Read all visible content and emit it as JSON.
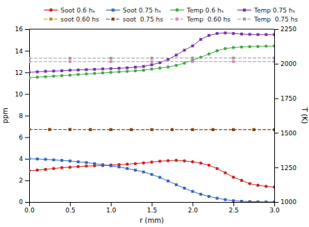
{
  "chart_data": {
    "type": "line",
    "xlabel": "r (mm)",
    "ylabel": "ppm",
    "y2label": "T (K)",
    "xlim": [
      0,
      3
    ],
    "ylim": [
      0,
      16
    ],
    "y2lim": [
      1000,
      2250
    ],
    "xticks": [
      {
        "value": 0,
        "label": "0.0"
      },
      0.5,
      {
        "value": 1,
        "label": "1.0"
      },
      1.5,
      {
        "value": 2,
        "label": "2.0"
      },
      2.5,
      {
        "value": 3,
        "label": "3.0"
      }
    ],
    "yticks": [
      0,
      2,
      4,
      6,
      8,
      10,
      12,
      14,
      16
    ],
    "y2ticks": [
      1000,
      1250,
      1500,
      1750,
      2000,
      2250
    ],
    "grid": false,
    "legend": "upper right",
    "series": [
      {
        "name": "Soot 0.6 hₛ",
        "color": "#cc2222",
        "marker": "circle",
        "line_style": "solid",
        "x": [
          0.0,
          0.1,
          0.2,
          0.3,
          0.4,
          0.5,
          0.6,
          0.7,
          0.8,
          0.9,
          1.0,
          1.1,
          1.2,
          1.3,
          1.4,
          1.5,
          1.6,
          1.7,
          1.8,
          1.9,
          2.0,
          2.1,
          2.2,
          2.3,
          2.4,
          2.5,
          2.6,
          2.7,
          2.8,
          2.9,
          3.0
        ],
        "values": [
          2.9,
          2.95,
          3.02,
          3.1,
          3.18,
          3.22,
          3.28,
          3.32,
          3.35,
          3.38,
          3.42,
          3.46,
          3.5,
          3.55,
          3.62,
          3.7,
          3.78,
          3.82,
          3.85,
          3.8,
          3.72,
          3.6,
          3.4,
          3.1,
          2.7,
          2.3,
          2.0,
          1.7,
          1.55,
          1.45,
          1.38
        ]
      },
      {
        "name": "Soot 0.75 hₛ",
        "color": "#3366bb",
        "marker": "square",
        "line_style": "solid",
        "x": [
          0.0,
          0.1,
          0.2,
          0.3,
          0.4,
          0.5,
          0.6,
          0.7,
          0.8,
          0.9,
          1.0,
          1.1,
          1.2,
          1.3,
          1.4,
          1.5,
          1.6,
          1.7,
          1.8,
          1.9,
          2.0,
          2.1,
          2.2,
          2.3,
          2.4,
          2.5,
          2.6,
          2.7,
          2.8,
          2.9,
          3.0
        ],
        "values": [
          4.0,
          3.98,
          3.95,
          3.9,
          3.85,
          3.8,
          3.72,
          3.65,
          3.55,
          3.45,
          3.35,
          3.25,
          3.1,
          2.95,
          2.78,
          2.55,
          2.28,
          1.95,
          1.6,
          1.28,
          0.98,
          0.72,
          0.52,
          0.35,
          0.22,
          0.12,
          0.07,
          0.04,
          0.02,
          0.01,
          0.0
        ]
      },
      {
        "name": "Temp 0.6 hₛ",
        "color": "#44aa44",
        "marker": "circle",
        "line_style": "solid",
        "x": [
          0.0,
          0.1,
          0.2,
          0.3,
          0.4,
          0.5,
          0.6,
          0.7,
          0.8,
          0.9,
          1.0,
          1.1,
          1.2,
          1.3,
          1.4,
          1.5,
          1.6,
          1.7,
          1.8,
          1.9,
          2.0,
          2.1,
          2.2,
          2.3,
          2.4,
          2.5,
          2.6,
          2.7,
          2.8,
          2.9,
          3.0
        ],
        "values": [
          11.5,
          11.55,
          11.6,
          11.65,
          11.7,
          11.75,
          11.8,
          11.85,
          11.9,
          11.95,
          12.0,
          12.05,
          12.1,
          12.15,
          12.2,
          12.3,
          12.4,
          12.5,
          12.65,
          12.85,
          13.1,
          13.4,
          13.7,
          14.0,
          14.2,
          14.3,
          14.35,
          14.38,
          14.4,
          14.42,
          14.44
        ]
      },
      {
        "name": "Temp 0.75 hₛ",
        "color": "#7733aa",
        "marker": "square",
        "line_style": "solid",
        "x": [
          0.0,
          0.1,
          0.2,
          0.3,
          0.4,
          0.5,
          0.6,
          0.7,
          0.8,
          0.9,
          1.0,
          1.1,
          1.2,
          1.3,
          1.4,
          1.5,
          1.6,
          1.7,
          1.8,
          1.9,
          2.0,
          2.1,
          2.2,
          2.3,
          2.4,
          2.5,
          2.6,
          2.7,
          2.8,
          2.9,
          3.0
        ],
        "values": [
          12.0,
          12.05,
          12.1,
          12.12,
          12.15,
          12.2,
          12.22,
          12.25,
          12.28,
          12.32,
          12.35,
          12.38,
          12.42,
          12.48,
          12.55,
          12.7,
          12.9,
          13.2,
          13.6,
          14.05,
          14.45,
          15.05,
          15.42,
          15.6,
          15.65,
          15.6,
          15.55,
          15.52,
          15.5,
          15.5,
          15.5
        ]
      },
      {
        "name": "soot 0.60 hs",
        "color": "#cc8800",
        "marker": "square",
        "line_style": "dashed",
        "x": [
          0.0,
          0.25,
          0.5,
          0.75,
          1.0,
          1.25,
          1.5,
          1.75,
          2.0,
          2.25,
          2.5,
          2.75,
          3.0
        ],
        "values": [
          6.72,
          6.71,
          6.71,
          6.7,
          6.7,
          6.7,
          6.7,
          6.7,
          6.7,
          6.7,
          6.7,
          6.7,
          6.7
        ]
      },
      {
        "name": "soot  0.75 hs",
        "color": "#774422",
        "marker": "square",
        "line_style": "dashed",
        "x": [
          0.0,
          0.25,
          0.5,
          0.75,
          1.0,
          1.25,
          1.5,
          1.75,
          2.0,
          2.25,
          2.5,
          2.75,
          3.0
        ],
        "values": [
          6.72,
          6.71,
          6.71,
          6.7,
          6.7,
          6.7,
          6.7,
          6.7,
          6.7,
          6.7,
          6.7,
          6.7,
          6.7
        ]
      },
      {
        "name": "Temp  0.60 hs",
        "color": "#cc88bb",
        "marker": "square",
        "line_style": "dashed",
        "x": [
          0.0,
          0.5,
          1.0,
          1.5,
          2.0,
          2.5,
          3.0
        ],
        "values": [
          13.0,
          13.0,
          13.0,
          13.0,
          13.0,
          13.0,
          13.0
        ]
      },
      {
        "name": "Temp  0.75 hs",
        "color": "#999999",
        "marker": "square",
        "line_style": "dashed",
        "x": [
          0.0,
          0.5,
          1.0,
          1.5,
          2.0,
          2.5,
          3.0
        ],
        "values": [
          13.31,
          13.31,
          13.31,
          13.32,
          13.33,
          13.33,
          13.34
        ]
      }
    ]
  }
}
